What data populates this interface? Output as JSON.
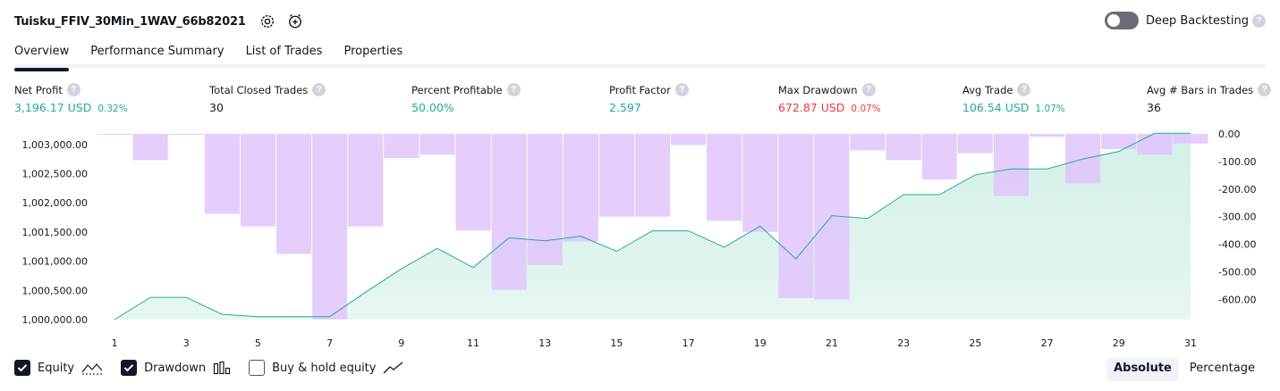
{
  "header": {
    "title": "Tuisku_FFIV_30Min_1WAV_66b82021",
    "deep_backtesting_label": "Deep Backtesting",
    "help_glyph": "?"
  },
  "tabs": [
    {
      "label": "Overview",
      "active": true
    },
    {
      "label": "Performance Summary",
      "active": false
    },
    {
      "label": "List of Trades",
      "active": false
    },
    {
      "label": "Properties",
      "active": false
    }
  ],
  "metrics": [
    {
      "label": "Net Profit",
      "value": "3,196.17 USD",
      "sub": "0.32%",
      "color": "green"
    },
    {
      "label": "Total Closed Trades",
      "value": "30",
      "sub": "",
      "color": "dark"
    },
    {
      "label": "Percent Profitable",
      "value": "50.00%",
      "sub": "",
      "color": "green"
    },
    {
      "label": "Profit Factor",
      "value": "2.597",
      "sub": "",
      "color": "green"
    },
    {
      "label": "Max Drawdown",
      "value": "672.87 USD",
      "sub": "0.07%",
      "color": "red"
    },
    {
      "label": "Avg Trade",
      "value": "106.54 USD",
      "sub": "1.07%",
      "color": "green"
    },
    {
      "label": "Avg # Bars in Trades",
      "value": "36",
      "sub": "",
      "color": "dark"
    }
  ],
  "legend": {
    "equity_label": "Equity",
    "equity_checked": true,
    "drawdown_label": "Drawdown",
    "drawdown_checked": true,
    "buyhold_label": "Buy & hold equity",
    "buyhold_checked": false
  },
  "mode": {
    "absolute_label": "Absolute",
    "percentage_label": "Percentage",
    "active": "absolute"
  },
  "colors": {
    "equity_line": "#22ab94",
    "equity_fill": "#d3efe8",
    "drawdown_fill": "#e1c4fb",
    "drawdown_overlap": "#c5bdf0",
    "positive": "#22ab94",
    "negative": "#f23645"
  },
  "chart_data": {
    "type": "area",
    "x": [
      1,
      2,
      3,
      4,
      5,
      6,
      7,
      8,
      9,
      10,
      11,
      12,
      13,
      14,
      15,
      16,
      17,
      18,
      19,
      20,
      21,
      22,
      23,
      24,
      25,
      26,
      27,
      28,
      29,
      30,
      31
    ],
    "x_tick_labels": [
      "1",
      "3",
      "5",
      "7",
      "9",
      "11",
      "13",
      "15",
      "17",
      "19",
      "21",
      "23",
      "25",
      "27",
      "29",
      "31"
    ],
    "left_axis": {
      "ticks": [
        "1,003,000.00",
        "1,002,500.00",
        "1,002,000.00",
        "1,001,500.00",
        "1,001,000.00",
        "1,000,500.00",
        "1,000,000.00"
      ],
      "tick_values": [
        1003000,
        1002500,
        1002000,
        1001500,
        1001000,
        1000500,
        1000000
      ],
      "ylim": [
        1000000,
        1003180
      ]
    },
    "right_axis": {
      "ticks": [
        "0.00",
        "-100.00",
        "-200.00",
        "-300.00",
        "-400.00",
        "-500.00",
        "-600.00"
      ],
      "tick_values": [
        0,
        -100,
        -200,
        -300,
        -400,
        -500,
        -600
      ],
      "ylim": [
        -672.87,
        0
      ]
    },
    "series": [
      {
        "name": "Equity",
        "axis": "left",
        "values": [
          1000000,
          1000380,
          1000380,
          1000090,
          1000050,
          1000050,
          1000050,
          1000470,
          1000870,
          1001220,
          1000890,
          1001400,
          1001350,
          1001430,
          1001170,
          1001520,
          1001520,
          1001240,
          1001600,
          1001040,
          1001780,
          1001730,
          1002140,
          1002140,
          1002480,
          1002580,
          1002580,
          1002750,
          1002880,
          1003190,
          1003190
        ]
      },
      {
        "name": "Drawdown",
        "axis": "right",
        "values": [
          -3,
          -95,
          -3,
          -290,
          -335,
          -435,
          -672,
          -335,
          -88,
          -75,
          -350,
          -565,
          -475,
          -390,
          -300,
          -300,
          -40,
          -315,
          -355,
          -595,
          -600,
          -60,
          -95,
          -165,
          -70,
          -225,
          -10,
          -180,
          -55,
          -75,
          -35
        ]
      }
    ]
  }
}
